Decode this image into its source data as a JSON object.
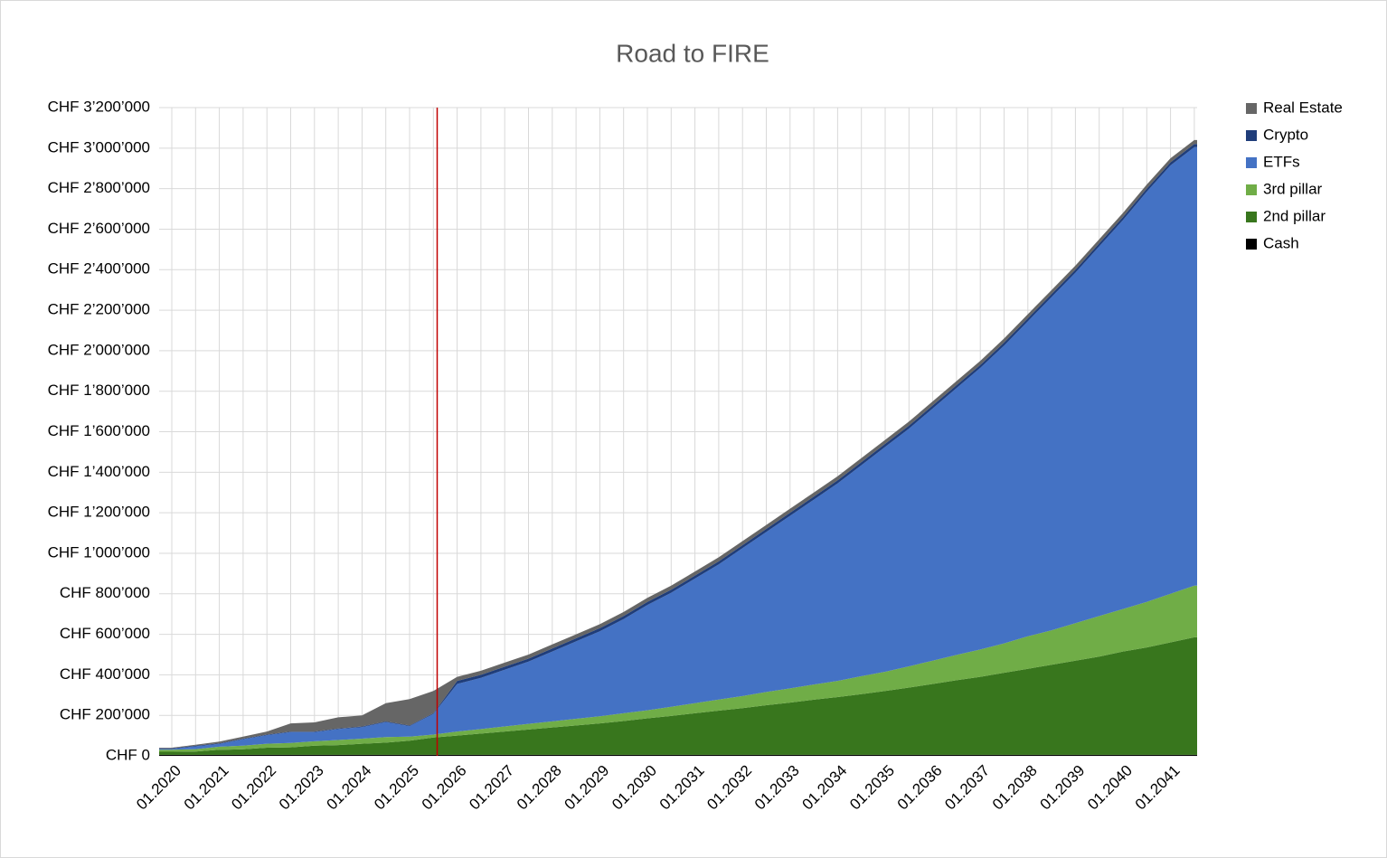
{
  "chart_data": {
    "type": "stacked-area",
    "title": "Road to FIRE",
    "categories": [
      "01.2020",
      null,
      "01.2021",
      null,
      "01.2022",
      null,
      "01.2023",
      null,
      "01.2024",
      null,
      "01.2025",
      null,
      "01.2026",
      null,
      "01.2027",
      null,
      "01.2028",
      null,
      "01.2029",
      null,
      "01.2030",
      null,
      "01.2031",
      null,
      "01.2032",
      null,
      "01.2033",
      null,
      "01.2034",
      null,
      "01.2035",
      null,
      "01.2036",
      null,
      "01.2037",
      null,
      "01.2038",
      null,
      "01.2039",
      null,
      "01.2040",
      null,
      "01.2041",
      null
    ],
    "series": [
      {
        "name": "Cash",
        "color": "#000000",
        "values": [
          5000,
          5000,
          5000,
          5000,
          5000,
          5000,
          5000,
          5000,
          5000,
          5000,
          5000,
          5000,
          5000,
          5000,
          5000,
          5000,
          5000,
          5000,
          5000,
          5000,
          5000,
          5000,
          5000,
          5000,
          5000,
          5000,
          5000,
          5000,
          5000,
          5000,
          5000,
          5000,
          5000,
          5000,
          5000,
          5000,
          5000,
          5000,
          5000,
          5000,
          5000,
          5000,
          5000,
          5000
        ]
      },
      {
        "name": "2nd pillar",
        "color": "#38761d",
        "values": [
          15000,
          16000,
          25000,
          27000,
          35000,
          37000,
          45000,
          48000,
          55000,
          60000,
          70000,
          85000,
          95000,
          105000,
          115000,
          125000,
          135000,
          145000,
          155000,
          167000,
          180000,
          192000,
          205000,
          218000,
          230000,
          245000,
          258000,
          272000,
          285000,
          300000,
          315000,
          332000,
          350000,
          368000,
          385000,
          405000,
          425000,
          445000,
          465000,
          485000,
          510000,
          530000,
          555000,
          580000
        ]
      },
      {
        "name": "3rd pillar",
        "color": "#70ad47",
        "values": [
          10000,
          12000,
          15000,
          18000,
          20000,
          22000,
          22000,
          25000,
          25000,
          28000,
          20000,
          15000,
          20000,
          22000,
          25000,
          28000,
          30000,
          33000,
          35000,
          38000,
          40000,
          45000,
          50000,
          55000,
          60000,
          65000,
          70000,
          75000,
          80000,
          88000,
          95000,
          105000,
          115000,
          125000,
          135000,
          145000,
          160000,
          170000,
          185000,
          200000,
          210000,
          225000,
          240000,
          255000
        ]
      },
      {
        "name": "ETFs",
        "color": "#4472c4",
        "values": [
          4000,
          14000,
          14000,
          32000,
          42000,
          53000,
          45000,
          54000,
          57000,
          74000,
          52000,
          102000,
          235000,
          253000,
          280000,
          307000,
          345000,
          382000,
          420000,
          465000,
          520000,
          563000,
          615000,
          667000,
          730000,
          790000,
          852000,
          913000,
          975000,
          1042000,
          1110000,
          1173000,
          1245000,
          1317000,
          1390000,
          1470000,
          1555000,
          1645000,
          1730000,
          1825000,
          1920000,
          2025000,
          2115000,
          2165000
        ]
      },
      {
        "name": "Crypto",
        "color": "#1f3d7a",
        "values": [
          3000,
          3000,
          3000,
          3000,
          3000,
          3000,
          3000,
          3000,
          3000,
          3000,
          3000,
          3000,
          15000,
          15000,
          15000,
          15000,
          15000,
          15000,
          15000,
          15000,
          15000,
          15000,
          15000,
          15000,
          15000,
          15000,
          15000,
          15000,
          15000,
          15000,
          15000,
          15000,
          15000,
          15000,
          15000,
          15000,
          15000,
          15000,
          15000,
          15000,
          15000,
          15000,
          15000,
          15000
        ]
      },
      {
        "name": "Real Estate",
        "color": "#666666",
        "values": [
          3000,
          5000,
          8000,
          10000,
          15000,
          40000,
          45000,
          55000,
          55000,
          90000,
          130000,
          110000,
          20000,
          20000,
          20000,
          20000,
          20000,
          20000,
          20000,
          20000,
          20000,
          20000,
          20000,
          20000,
          20000,
          20000,
          20000,
          20000,
          20000,
          20000,
          20000,
          20000,
          20000,
          20000,
          20000,
          20000,
          20000,
          20000,
          20000,
          20000,
          20000,
          20000,
          20000,
          20000
        ]
      }
    ],
    "ylim": [
      0,
      3200000
    ],
    "yticks": [
      {
        "value": 0,
        "label": "CHF 0"
      },
      {
        "value": 200000,
        "label": "CHF 200’000"
      },
      {
        "value": 400000,
        "label": "CHF 400’000"
      },
      {
        "value": 600000,
        "label": "CHF 600’000"
      },
      {
        "value": 800000,
        "label": "CHF 800’000"
      },
      {
        "value": 1000000,
        "label": "CHF 1’000’000"
      },
      {
        "value": 1200000,
        "label": "CHF 1’200’000"
      },
      {
        "value": 1400000,
        "label": "CHF 1’400’000"
      },
      {
        "value": 1600000,
        "label": "CHF 1’600’000"
      },
      {
        "value": 1800000,
        "label": "CHF 1’800’000"
      },
      {
        "value": 2000000,
        "label": "CHF 2’000’000"
      },
      {
        "value": 2200000,
        "label": "CHF 2’200’000"
      },
      {
        "value": 2400000,
        "label": "CHF 2’400’000"
      },
      {
        "value": 2600000,
        "label": "CHF 2’600’000"
      },
      {
        "value": 2800000,
        "label": "CHF 2’800’000"
      },
      {
        "value": 3000000,
        "label": "CHF 3’000’000"
      },
      {
        "value": 3200000,
        "label": "CHF 3’200’000"
      }
    ],
    "grid": true,
    "legend": "right"
  }
}
